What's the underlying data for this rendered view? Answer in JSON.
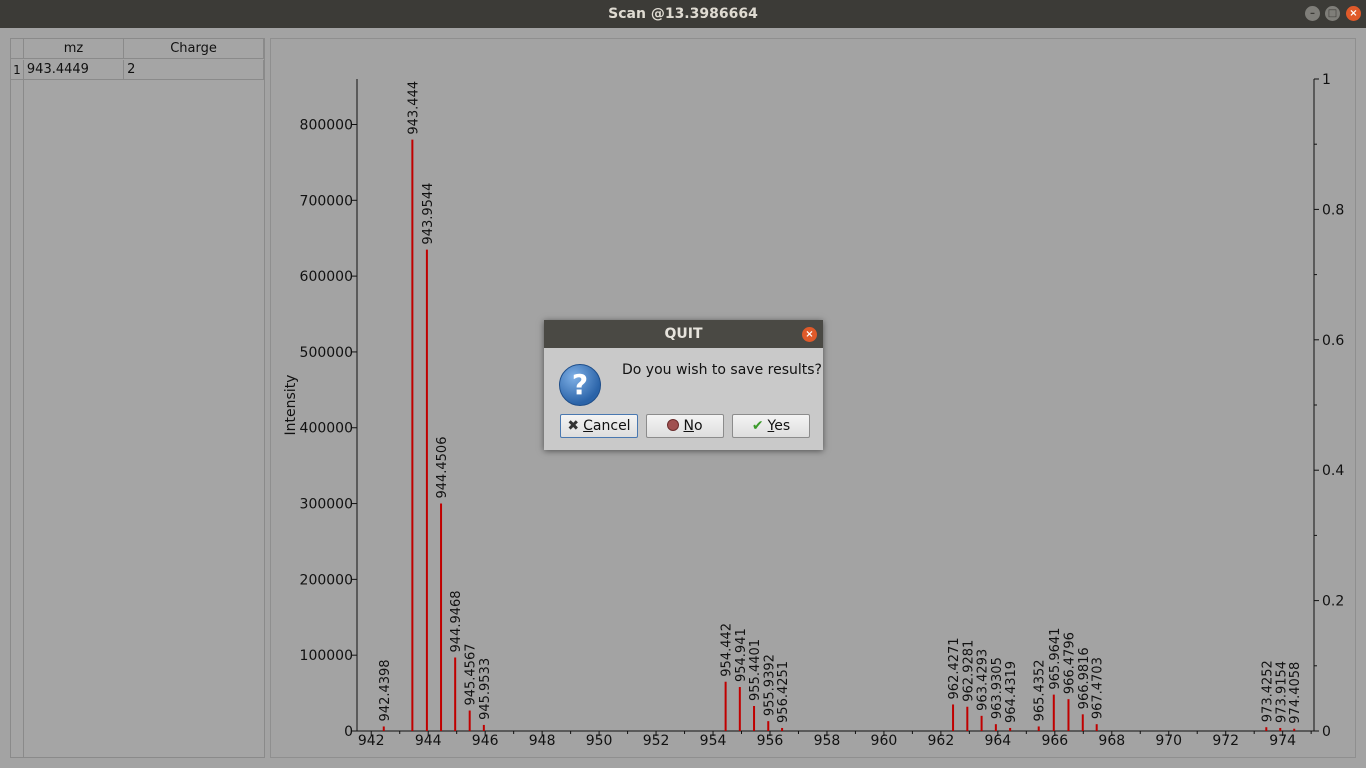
{
  "window": {
    "title": "Scan @13.3986664",
    "minimize_glyph": "–",
    "maximize_glyph": "□",
    "close_glyph": "×"
  },
  "table": {
    "columns": [
      "mz",
      "Charge"
    ],
    "rows": [
      {
        "index": "1",
        "mz": "943.4449",
        "charge": "2"
      }
    ]
  },
  "chart_data": {
    "type": "bar",
    "ylabel": "Intensity",
    "xlim": [
      941.5,
      975.1
    ],
    "ylim": [
      0,
      860000
    ],
    "y_ticks": [
      0,
      100000,
      200000,
      300000,
      400000,
      500000,
      600000,
      700000,
      800000
    ],
    "x_ticks": [
      942,
      944,
      946,
      948,
      950,
      952,
      954,
      956,
      958,
      960,
      962,
      964,
      966,
      968,
      970,
      972,
      974
    ],
    "y2_ticks": [
      0,
      0.2,
      0.4,
      0.6,
      0.8,
      1
    ],
    "y2lim": [
      0,
      1
    ],
    "bar_color": "#c00000",
    "peaks": [
      {
        "mz": 942.4398,
        "label": "942.4398",
        "intensity": 6000
      },
      {
        "mz": 943.444,
        "label": "943.444",
        "intensity": 780000
      },
      {
        "mz": 943.9544,
        "label": "943.9544",
        "intensity": 635000
      },
      {
        "mz": 944.4506,
        "label": "944.4506",
        "intensity": 300000
      },
      {
        "mz": 944.9468,
        "label": "944.9468",
        "intensity": 97000
      },
      {
        "mz": 945.4567,
        "label": "945.4567",
        "intensity": 27000
      },
      {
        "mz": 945.9533,
        "label": "945.9533",
        "intensity": 8000
      },
      {
        "mz": 954.442,
        "label": "954.442",
        "intensity": 65000
      },
      {
        "mz": 954.941,
        "label": "954.941",
        "intensity": 58000
      },
      {
        "mz": 955.4401,
        "label": "955.4401",
        "intensity": 33000
      },
      {
        "mz": 955.9392,
        "label": "955.9392",
        "intensity": 13000
      },
      {
        "mz": 956.4251,
        "label": "956.4251",
        "intensity": 4000
      },
      {
        "mz": 962.4271,
        "label": "962.4271",
        "intensity": 35000
      },
      {
        "mz": 962.9281,
        "label": "962.9281",
        "intensity": 32000
      },
      {
        "mz": 963.4293,
        "label": "963.4293",
        "intensity": 20000
      },
      {
        "mz": 963.9305,
        "label": "963.9305",
        "intensity": 9000
      },
      {
        "mz": 964.4319,
        "label": "964.4319",
        "intensity": 4000
      },
      {
        "mz": 965.4352,
        "label": "965.4352",
        "intensity": 6000
      },
      {
        "mz": 965.9641,
        "label": "965.9641",
        "intensity": 48000
      },
      {
        "mz": 966.4796,
        "label": "966.4796",
        "intensity": 42000
      },
      {
        "mz": 966.9816,
        "label": "966.9816",
        "intensity": 22000
      },
      {
        "mz": 967.4703,
        "label": "967.4703",
        "intensity": 9000
      },
      {
        "mz": 973.4252,
        "label": "973.4252",
        "intensity": 5000
      },
      {
        "mz": 973.9154,
        "label": "973.9154",
        "intensity": 4000
      },
      {
        "mz": 974.4058,
        "label": "974.4058",
        "intensity": 3000
      }
    ]
  },
  "dialog": {
    "title": "QUIT",
    "message": "Do you wish to save results?",
    "icon": "question-icon",
    "buttons": {
      "cancel_mnemonic": "C",
      "cancel_rest": "ancel",
      "no_mnemonic": "N",
      "no_rest": "o",
      "yes_mnemonic": "Y",
      "yes_rest": "es"
    }
  }
}
